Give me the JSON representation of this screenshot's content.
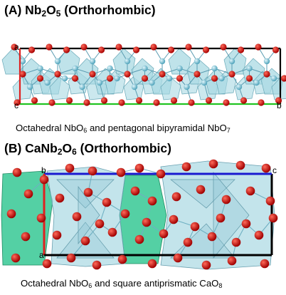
{
  "panel_a": {
    "title_letter": "(A)",
    "formula": {
      "el1": "Nb",
      "n1": "2",
      "el2": "O",
      "n2": "5"
    },
    "phase": "(Orthorhombic)",
    "caption": {
      "pre": "Octahedral NbO",
      "n1": "6",
      "mid": " and pentagonal bipyramidal NbO",
      "n2": "7"
    },
    "axis_labels": {
      "a": "a",
      "c": "c",
      "b": "b"
    }
  },
  "panel_b": {
    "title_letter": "(B)",
    "formula": {
      "el1": "CaNb",
      "n1": "2",
      "el2": "O",
      "n2": "6"
    },
    "phase": "(Orthorhombic)",
    "caption": {
      "pre": "Octahedral NbO",
      "n1": "6",
      "mid": " and square antiprismatic CaO",
      "n2": "8"
    },
    "axis_labels": {
      "b": "b",
      "c": "c",
      "a": "a"
    }
  },
  "colors": {
    "oxygen": "#d40000",
    "niobium": "#7fc9dc",
    "nb_polyhedra": "#a9d9e3",
    "ca_polyhedra": "#36c894",
    "axis_a": "#e02020",
    "axis_b": "#000000",
    "axis_c_panel_a": "#22c422",
    "axis_c_panel_b": "#1a1ad0"
  }
}
